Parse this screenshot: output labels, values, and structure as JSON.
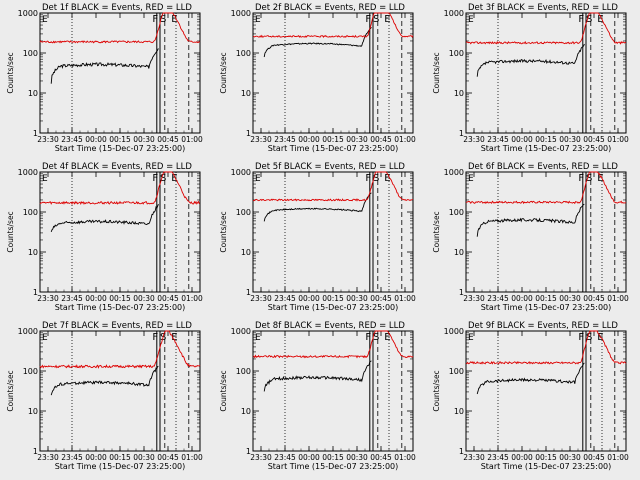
{
  "figure": {
    "background": "#ececec",
    "axis_color": "#000000",
    "events_color": "#000000",
    "lld_color": "#dd0000"
  },
  "chart_data": [
    {
      "type": "line",
      "title": "Det 1f BLACK = Events, RED = LLD",
      "xlabel": "Start Time (15-Dec-07 23:25:00)",
      "ylabel": "Counts/sec",
      "yscale": "log",
      "ylim": [
        1,
        1000
      ],
      "xlim": [
        "23:25",
        "01:05"
      ],
      "x_ticks": [
        "23:30",
        "23:45",
        "00:00",
        "00:15",
        "00:30",
        "00:45",
        "01:00"
      ],
      "y_ticks": [
        "1",
        "10",
        "100",
        "1000"
      ],
      "grid": false,
      "attenuator_labels": [
        "F",
        "S",
        "E"
      ],
      "series": [
        {
          "name": "Events",
          "color": "#000000",
          "x_start": "23:32",
          "x_end": "00:39",
          "start_value": 18,
          "level_value": 45,
          "noise": 0.08
        },
        {
          "name": "LLD",
          "color": "#dd0000",
          "x_start": "23:25",
          "x_end": "01:05",
          "level_value": 190,
          "noise": 0.05
        }
      ]
    },
    {
      "type": "line",
      "title": "Det 2f BLACK = Events, RED = LLD",
      "xlabel": "Start Time (15-Dec-07 23:25:00)",
      "ylabel": "Counts/sec",
      "yscale": "log",
      "ylim": [
        1,
        1000
      ],
      "xlim": [
        "23:25",
        "01:05"
      ],
      "x_ticks": [
        "23:30",
        "23:45",
        "00:00",
        "00:15",
        "00:30",
        "00:45",
        "01:00"
      ],
      "y_ticks": [
        "1",
        "10",
        "100",
        "1000"
      ],
      "grid": false,
      "attenuator_labels": [
        "F",
        "S",
        "E"
      ],
      "series": [
        {
          "name": "Events",
          "color": "#000000",
          "x_start": "23:32",
          "x_end": "00:39",
          "start_value": 80,
          "level_value": 150,
          "noise": 0.03
        },
        {
          "name": "LLD",
          "color": "#dd0000",
          "x_start": "23:25",
          "x_end": "01:05",
          "level_value": 260,
          "noise": 0.04
        }
      ]
    },
    {
      "type": "line",
      "title": "Det 3f BLACK = Events, RED = LLD",
      "xlabel": "Start Time (15-Dec-07 23:25:00)",
      "ylabel": "Counts/sec",
      "yscale": "log",
      "ylim": [
        1,
        1000
      ],
      "xlim": [
        "23:25",
        "01:05"
      ],
      "x_ticks": [
        "23:30",
        "23:45",
        "00:00",
        "00:15",
        "00:30",
        "00:45",
        "01:00"
      ],
      "y_ticks": [
        "1",
        "10",
        "100",
        "1000"
      ],
      "grid": false,
      "attenuator_labels": [
        "F",
        "S",
        "E"
      ],
      "series": [
        {
          "name": "Events",
          "color": "#000000",
          "x_start": "23:32",
          "x_end": "00:39",
          "start_value": 25,
          "level_value": 55,
          "noise": 0.07
        },
        {
          "name": "LLD",
          "color": "#dd0000",
          "x_start": "23:25",
          "x_end": "01:05",
          "level_value": 180,
          "noise": 0.05
        }
      ]
    },
    {
      "type": "line",
      "title": "Det 4f BLACK = Events, RED = LLD",
      "xlabel": "Start Time (15-Dec-07 23:25:00)",
      "ylabel": "Counts/sec",
      "yscale": "log",
      "ylim": [
        1,
        1000
      ],
      "xlim": [
        "23:25",
        "01:05"
      ],
      "x_ticks": [
        "23:30",
        "23:45",
        "00:00",
        "00:15",
        "00:30",
        "00:45",
        "01:00"
      ],
      "y_ticks": [
        "1",
        "10",
        "100",
        "1000"
      ],
      "grid": false,
      "attenuator_labels": [
        "F",
        "S",
        "E"
      ],
      "series": [
        {
          "name": "Events",
          "color": "#000000",
          "x_start": "23:32",
          "x_end": "00:39",
          "start_value": 30,
          "level_value": 50,
          "noise": 0.07
        },
        {
          "name": "LLD",
          "color": "#dd0000",
          "x_start": "23:25",
          "x_end": "01:05",
          "level_value": 170,
          "noise": 0.06
        }
      ]
    },
    {
      "type": "line",
      "title": "Det 5f BLACK = Events, RED = LLD",
      "xlabel": "Start Time (15-Dec-07 23:25:00)",
      "ylabel": "Counts/sec",
      "yscale": "log",
      "ylim": [
        1,
        1000
      ],
      "xlim": [
        "23:25",
        "01:05"
      ],
      "x_ticks": [
        "23:30",
        "23:45",
        "00:00",
        "00:15",
        "00:30",
        "00:45",
        "01:00"
      ],
      "y_ticks": [
        "1",
        "10",
        "100",
        "1000"
      ],
      "grid": false,
      "attenuator_labels": [
        "F",
        "S",
        "E"
      ],
      "series": [
        {
          "name": "Events",
          "color": "#000000",
          "x_start": "23:32",
          "x_end": "00:39",
          "start_value": 60,
          "level_value": 105,
          "noise": 0.03
        },
        {
          "name": "LLD",
          "color": "#dd0000",
          "x_start": "23:25",
          "x_end": "01:05",
          "level_value": 200,
          "noise": 0.04
        }
      ]
    },
    {
      "type": "line",
      "title": "Det 6f BLACK = Events, RED = LLD",
      "xlabel": "Start Time (15-Dec-07 23:25:00)",
      "ylabel": "Counts/sec",
      "yscale": "log",
      "ylim": [
        1,
        1000
      ],
      "xlim": [
        "23:25",
        "01:05"
      ],
      "x_ticks": [
        "23:30",
        "23:45",
        "00:00",
        "00:15",
        "00:30",
        "00:45",
        "01:00"
      ],
      "y_ticks": [
        "1",
        "10",
        "100",
        "1000"
      ],
      "grid": false,
      "attenuator_labels": [
        "F",
        "S",
        "E"
      ],
      "series": [
        {
          "name": "Events",
          "color": "#000000",
          "x_start": "23:32",
          "x_end": "00:39",
          "start_value": 25,
          "level_value": 55,
          "noise": 0.07
        },
        {
          "name": "LLD",
          "color": "#dd0000",
          "x_start": "23:25",
          "x_end": "01:05",
          "level_value": 175,
          "noise": 0.05
        }
      ]
    },
    {
      "type": "line",
      "title": "Det 7f BLACK = Events, RED = LLD",
      "xlabel": "Start Time (15-Dec-07 23:25:00)",
      "ylabel": "Counts/sec",
      "yscale": "log",
      "ylim": [
        1,
        1000
      ],
      "xlim": [
        "23:25",
        "01:05"
      ],
      "x_ticks": [
        "23:30",
        "23:45",
        "00:00",
        "00:15",
        "00:30",
        "00:45",
        "01:00"
      ],
      "y_ticks": [
        "1",
        "10",
        "100",
        "1000"
      ],
      "grid": false,
      "attenuator_labels": [
        "F",
        "S",
        "E"
      ],
      "series": [
        {
          "name": "Events",
          "color": "#000000",
          "x_start": "23:32",
          "x_end": "00:39",
          "start_value": 25,
          "level_value": 45,
          "noise": 0.07
        },
        {
          "name": "LLD",
          "color": "#dd0000",
          "x_start": "23:25",
          "x_end": "01:05",
          "level_value": 130,
          "noise": 0.06
        }
      ]
    },
    {
      "type": "line",
      "title": "Det 8f BLACK = Events, RED = LLD",
      "xlabel": "Start Time (15-Dec-07 23:25:00)",
      "ylabel": "Counts/sec",
      "yscale": "log",
      "ylim": [
        1,
        1000
      ],
      "xlim": [
        "23:25",
        "01:05"
      ],
      "x_ticks": [
        "23:30",
        "23:45",
        "00:00",
        "00:15",
        "00:30",
        "00:45",
        "01:00"
      ],
      "y_ticks": [
        "1",
        "10",
        "100",
        "1000"
      ],
      "grid": false,
      "attenuator_labels": [
        "F",
        "S",
        "E"
      ],
      "series": [
        {
          "name": "Events",
          "color": "#000000",
          "x_start": "23:32",
          "x_end": "00:39",
          "start_value": 30,
          "level_value": 60,
          "noise": 0.07
        },
        {
          "name": "LLD",
          "color": "#dd0000",
          "x_start": "23:25",
          "x_end": "01:05",
          "level_value": 230,
          "noise": 0.05
        }
      ]
    },
    {
      "type": "line",
      "title": "Det 9f BLACK = Events, RED = LLD",
      "xlabel": "Start Time (15-Dec-07 23:25:00)",
      "ylabel": "Counts/sec",
      "yscale": "log",
      "ylim": [
        1,
        1000
      ],
      "xlim": [
        "23:25",
        "01:05"
      ],
      "x_ticks": [
        "23:30",
        "23:45",
        "00:00",
        "00:15",
        "00:30",
        "00:45",
        "01:00"
      ],
      "y_ticks": [
        "1",
        "10",
        "100",
        "1000"
      ],
      "grid": false,
      "attenuator_labels": [
        "F",
        "S",
        "E"
      ],
      "series": [
        {
          "name": "Events",
          "color": "#000000",
          "x_start": "23:32",
          "x_end": "00:39",
          "start_value": 25,
          "level_value": 52,
          "noise": 0.07
        },
        {
          "name": "LLD",
          "color": "#dd0000",
          "x_start": "23:25",
          "x_end": "01:05",
          "level_value": 160,
          "noise": 0.05
        }
      ]
    }
  ]
}
